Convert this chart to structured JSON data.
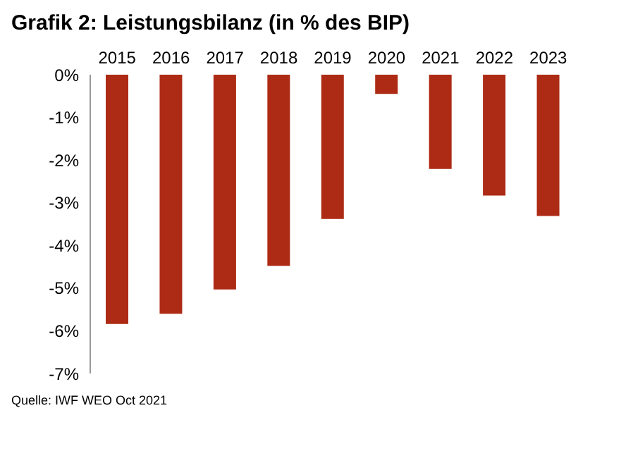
{
  "chart_data": {
    "type": "bar",
    "title": "Grafik 2: Leistungsbilanz (in % des BIP)",
    "categories": [
      "2015",
      "2016",
      "2017",
      "2018",
      "2019",
      "2020",
      "2021",
      "2022",
      "2023"
    ],
    "values": [
      -5.84,
      -5.6,
      -5.03,
      -4.48,
      -3.38,
      -0.45,
      -2.21,
      -2.83,
      -3.31
    ],
    "color": "#ad2a14",
    "ylim": [
      -7,
      0
    ],
    "yticks": [
      {
        "value": 0,
        "label": "0%"
      },
      {
        "value": -1,
        "label": "-1%"
      },
      {
        "value": -2,
        "label": "-2%"
      },
      {
        "value": -3,
        "label": "-3%"
      },
      {
        "value": -4,
        "label": "-4%"
      },
      {
        "value": -5,
        "label": "-5%"
      },
      {
        "value": -6,
        "label": "-6%"
      },
      {
        "value": -7,
        "label": "-7%"
      }
    ],
    "grid": false,
    "annotations": [
      "Quelle: IWF WEO Oct 2021"
    ]
  }
}
